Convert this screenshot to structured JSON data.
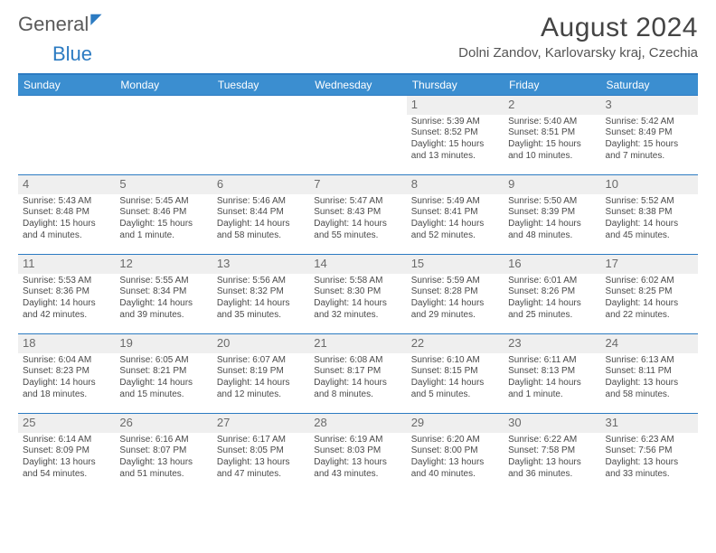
{
  "logo": {
    "text1": "General",
    "text2": "Blue"
  },
  "title": "August 2024",
  "subtitle": "Dolni Zandov, Karlovarsky kraj, Czechia",
  "colors": {
    "header_bg": "#3b8ed0",
    "border": "#2c7bc2",
    "daynum_bg": "#efefef",
    "text": "#4a4a4a"
  },
  "day_headers": [
    "Sunday",
    "Monday",
    "Tuesday",
    "Wednesday",
    "Thursday",
    "Friday",
    "Saturday"
  ],
  "weeks": [
    [
      null,
      null,
      null,
      null,
      {
        "n": "1",
        "sr": "5:39 AM",
        "ss": "8:52 PM",
        "dl": "15 hours and 13 minutes."
      },
      {
        "n": "2",
        "sr": "5:40 AM",
        "ss": "8:51 PM",
        "dl": "15 hours and 10 minutes."
      },
      {
        "n": "3",
        "sr": "5:42 AM",
        "ss": "8:49 PM",
        "dl": "15 hours and 7 minutes."
      }
    ],
    [
      {
        "n": "4",
        "sr": "5:43 AM",
        "ss": "8:48 PM",
        "dl": "15 hours and 4 minutes."
      },
      {
        "n": "5",
        "sr": "5:45 AM",
        "ss": "8:46 PM",
        "dl": "15 hours and 1 minute."
      },
      {
        "n": "6",
        "sr": "5:46 AM",
        "ss": "8:44 PM",
        "dl": "14 hours and 58 minutes."
      },
      {
        "n": "7",
        "sr": "5:47 AM",
        "ss": "8:43 PM",
        "dl": "14 hours and 55 minutes."
      },
      {
        "n": "8",
        "sr": "5:49 AM",
        "ss": "8:41 PM",
        "dl": "14 hours and 52 minutes."
      },
      {
        "n": "9",
        "sr": "5:50 AM",
        "ss": "8:39 PM",
        "dl": "14 hours and 48 minutes."
      },
      {
        "n": "10",
        "sr": "5:52 AM",
        "ss": "8:38 PM",
        "dl": "14 hours and 45 minutes."
      }
    ],
    [
      {
        "n": "11",
        "sr": "5:53 AM",
        "ss": "8:36 PM",
        "dl": "14 hours and 42 minutes."
      },
      {
        "n": "12",
        "sr": "5:55 AM",
        "ss": "8:34 PM",
        "dl": "14 hours and 39 minutes."
      },
      {
        "n": "13",
        "sr": "5:56 AM",
        "ss": "8:32 PM",
        "dl": "14 hours and 35 minutes."
      },
      {
        "n": "14",
        "sr": "5:58 AM",
        "ss": "8:30 PM",
        "dl": "14 hours and 32 minutes."
      },
      {
        "n": "15",
        "sr": "5:59 AM",
        "ss": "8:28 PM",
        "dl": "14 hours and 29 minutes."
      },
      {
        "n": "16",
        "sr": "6:01 AM",
        "ss": "8:26 PM",
        "dl": "14 hours and 25 minutes."
      },
      {
        "n": "17",
        "sr": "6:02 AM",
        "ss": "8:25 PM",
        "dl": "14 hours and 22 minutes."
      }
    ],
    [
      {
        "n": "18",
        "sr": "6:04 AM",
        "ss": "8:23 PM",
        "dl": "14 hours and 18 minutes."
      },
      {
        "n": "19",
        "sr": "6:05 AM",
        "ss": "8:21 PM",
        "dl": "14 hours and 15 minutes."
      },
      {
        "n": "20",
        "sr": "6:07 AM",
        "ss": "8:19 PM",
        "dl": "14 hours and 12 minutes."
      },
      {
        "n": "21",
        "sr": "6:08 AM",
        "ss": "8:17 PM",
        "dl": "14 hours and 8 minutes."
      },
      {
        "n": "22",
        "sr": "6:10 AM",
        "ss": "8:15 PM",
        "dl": "14 hours and 5 minutes."
      },
      {
        "n": "23",
        "sr": "6:11 AM",
        "ss": "8:13 PM",
        "dl": "14 hours and 1 minute."
      },
      {
        "n": "24",
        "sr": "6:13 AM",
        "ss": "8:11 PM",
        "dl": "13 hours and 58 minutes."
      }
    ],
    [
      {
        "n": "25",
        "sr": "6:14 AM",
        "ss": "8:09 PM",
        "dl": "13 hours and 54 minutes."
      },
      {
        "n": "26",
        "sr": "6:16 AM",
        "ss": "8:07 PM",
        "dl": "13 hours and 51 minutes."
      },
      {
        "n": "27",
        "sr": "6:17 AM",
        "ss": "8:05 PM",
        "dl": "13 hours and 47 minutes."
      },
      {
        "n": "28",
        "sr": "6:19 AM",
        "ss": "8:03 PM",
        "dl": "13 hours and 43 minutes."
      },
      {
        "n": "29",
        "sr": "6:20 AM",
        "ss": "8:00 PM",
        "dl": "13 hours and 40 minutes."
      },
      {
        "n": "30",
        "sr": "6:22 AM",
        "ss": "7:58 PM",
        "dl": "13 hours and 36 minutes."
      },
      {
        "n": "31",
        "sr": "6:23 AM",
        "ss": "7:56 PM",
        "dl": "13 hours and 33 minutes."
      }
    ]
  ],
  "labels": {
    "sunrise": "Sunrise:",
    "sunset": "Sunset:",
    "daylight": "Daylight:"
  }
}
